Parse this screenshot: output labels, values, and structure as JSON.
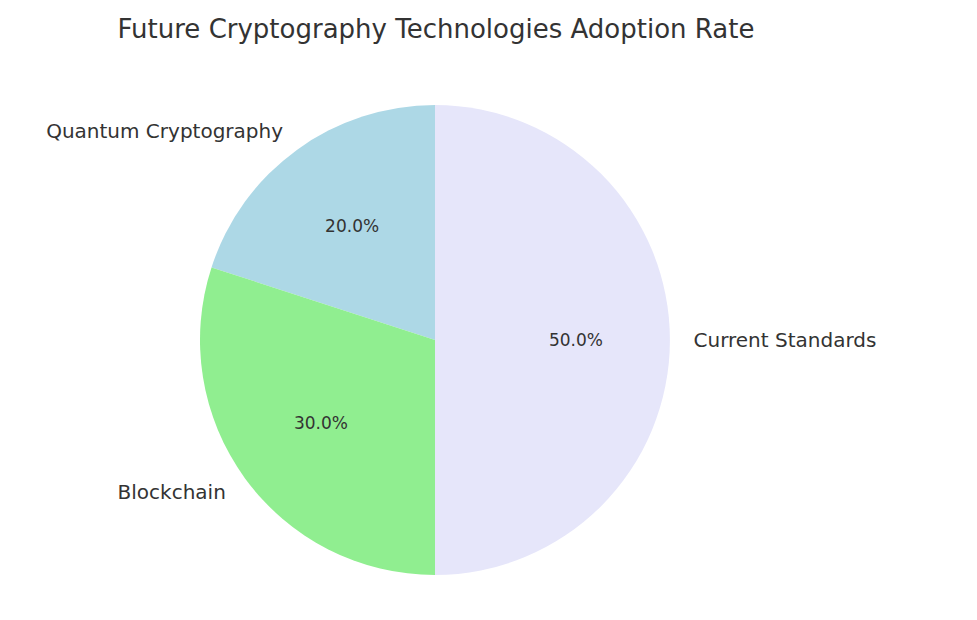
{
  "chart_data": {
    "type": "pie",
    "title": "Future Cryptography Technologies Adoption Rate",
    "categories": [
      "Quantum Cryptography",
      "Blockchain",
      "Current Standards"
    ],
    "values": [
      20,
      30,
      50
    ],
    "value_labels": [
      "20.0%",
      "30.0%",
      "50.0%"
    ],
    "colors": [
      "#add8e6",
      "#90ee90",
      "#e6e6fa"
    ],
    "data_labels": true
  }
}
